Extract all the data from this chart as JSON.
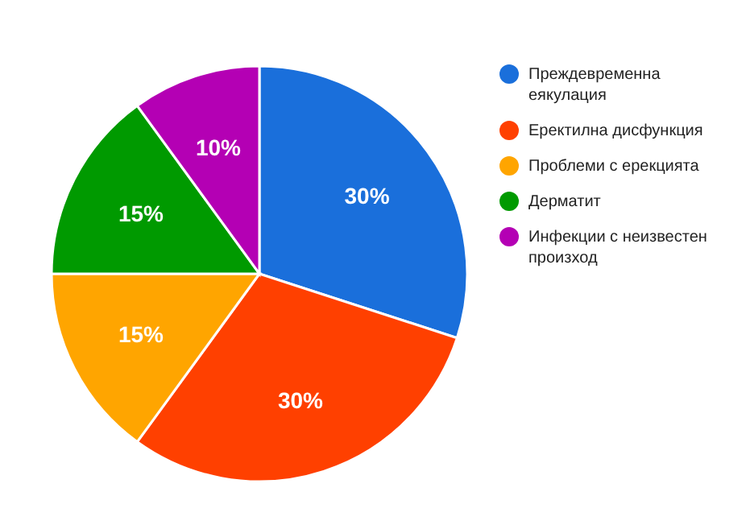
{
  "chart_data": {
    "type": "pie",
    "categories": [
      "Преждевременна еякулация",
      "Еректилна дисфункция",
      "Проблеми с ерекцията",
      "Дерматит",
      "Инфекции с неизвестен произход"
    ],
    "values": [
      30,
      30,
      15,
      15,
      10
    ],
    "colors": [
      "#1a6fdb",
      "#ff4000",
      "#ffa500",
      "#009a00",
      "#b400b4"
    ],
    "value_labels": [
      "30%",
      "30%",
      "15%",
      "15%",
      "10%"
    ],
    "legend": "right"
  }
}
